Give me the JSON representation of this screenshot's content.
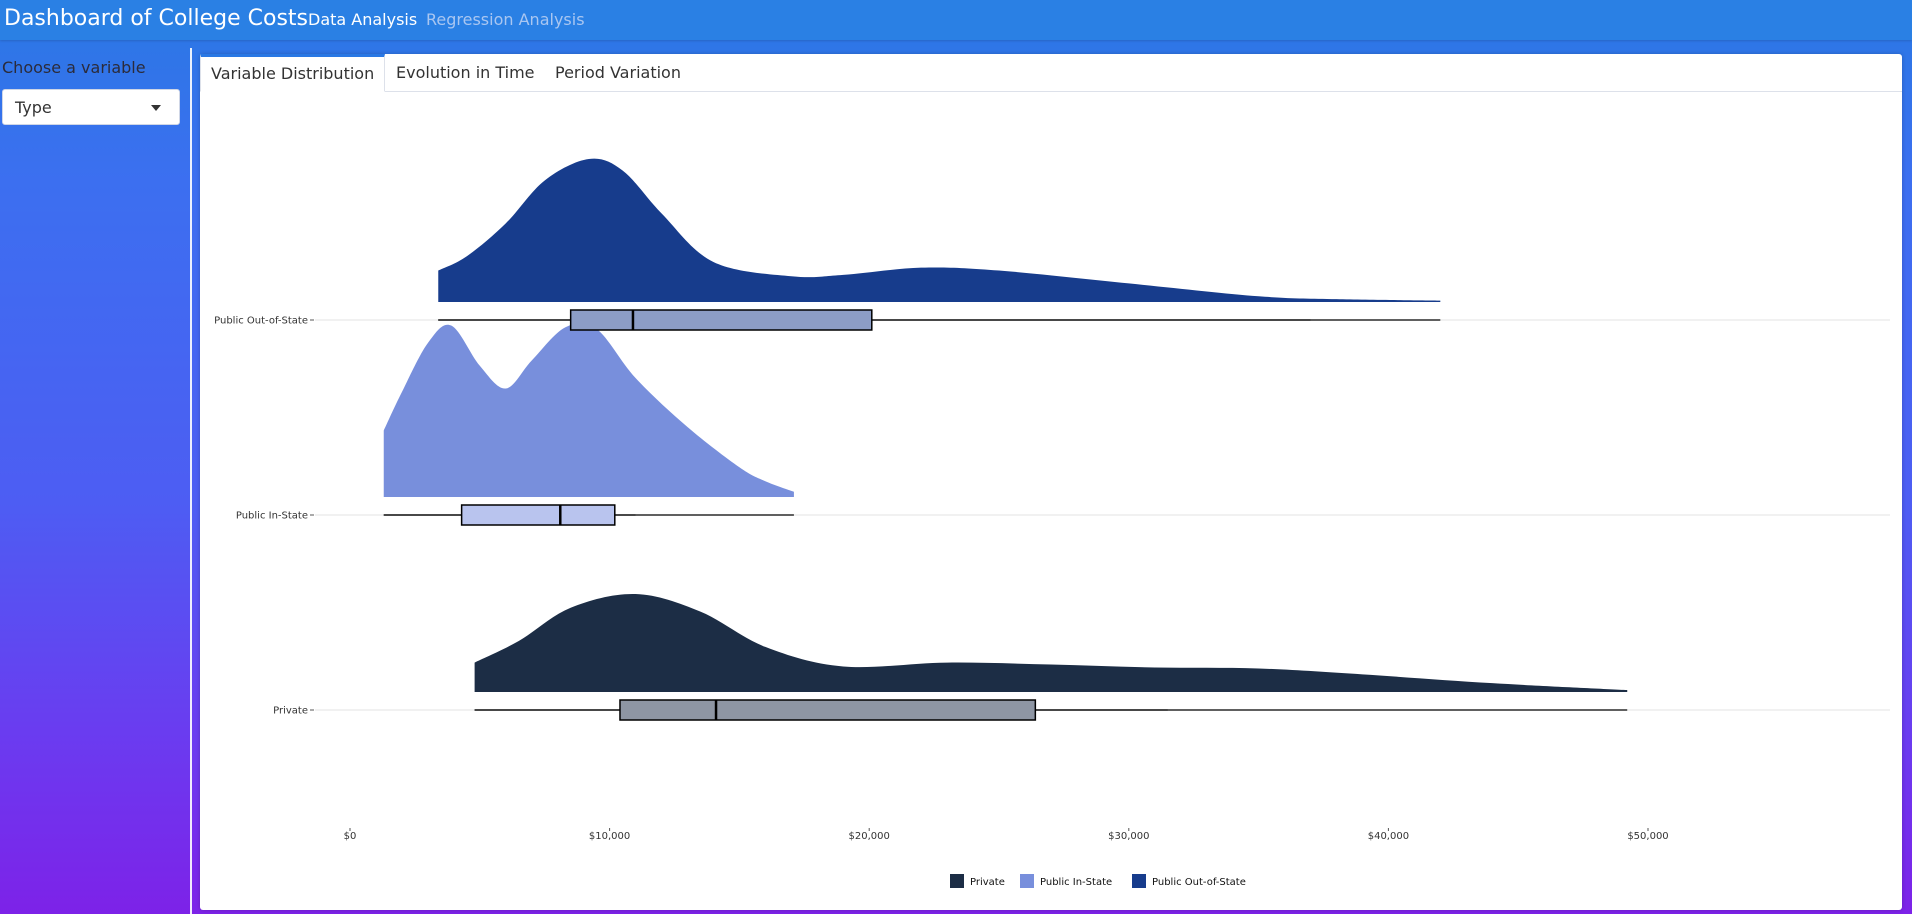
{
  "app": {
    "title": "Dashboard of College Costs",
    "nav": [
      {
        "label": "Data Analysis",
        "active": true
      },
      {
        "label": "Regression Analysis",
        "active": false
      }
    ]
  },
  "sidebar": {
    "label": "Choose a variable",
    "select_value": "Type"
  },
  "tabs": [
    {
      "label": "Variable Distribution",
      "active": true
    },
    {
      "label": "Evolution in Time",
      "active": false
    },
    {
      "label": "Period Variation",
      "active": false
    }
  ],
  "chart_data": {
    "type": "raincloud",
    "categories": [
      "Public Out-of-State",
      "Public In-State",
      "Private"
    ],
    "x_ticks": [
      "$0",
      "$10,000",
      "$20,000",
      "$30,000",
      "$40,000",
      "$50,000"
    ],
    "xlim": [
      0,
      50000
    ],
    "grid": "horizontal",
    "legend_position": "bottom",
    "legend": [
      "Private",
      "Public In-State",
      "Public Out-of-State"
    ],
    "colors": {
      "Private": "#1c2d45",
      "Public In-State": "#788fdc",
      "Public Out-of-State": "#173c8c"
    },
    "box_fill": {
      "Private": "#8e96a4",
      "Public In-State": "#b9c4ee",
      "Public Out-of-State": "#8c9dc6"
    },
    "series": [
      {
        "category": "Public Out-of-State",
        "min": 3400,
        "q1": 8500,
        "median": 10900,
        "q3": 20100,
        "max": 42000,
        "whisker_hi": 37000,
        "density": [
          [
            3400,
            0.22
          ],
          [
            4500,
            0.32
          ],
          [
            6000,
            0.55
          ],
          [
            7500,
            0.85
          ],
          [
            9200,
            1.0
          ],
          [
            10500,
            0.92
          ],
          [
            12000,
            0.62
          ],
          [
            14000,
            0.28
          ],
          [
            17000,
            0.18
          ],
          [
            19000,
            0.19
          ],
          [
            22000,
            0.24
          ],
          [
            25000,
            0.22
          ],
          [
            30000,
            0.13
          ],
          [
            35000,
            0.04
          ],
          [
            38000,
            0.02
          ],
          [
            42000,
            0.01
          ]
        ]
      },
      {
        "category": "Public In-State",
        "min": 1300,
        "q1": 4300,
        "median": 8100,
        "q3": 10200,
        "max": 17100,
        "whisker_hi": 11000,
        "density": [
          [
            1300,
            0.38
          ],
          [
            2000,
            0.6
          ],
          [
            3000,
            0.88
          ],
          [
            3900,
            0.98
          ],
          [
            5000,
            0.75
          ],
          [
            6000,
            0.62
          ],
          [
            7000,
            0.78
          ],
          [
            8300,
            0.97
          ],
          [
            9500,
            0.96
          ],
          [
            11000,
            0.68
          ],
          [
            13000,
            0.4
          ],
          [
            15000,
            0.17
          ],
          [
            16000,
            0.09
          ],
          [
            17100,
            0.03
          ]
        ]
      },
      {
        "category": "Private",
        "min": 4800,
        "q1": 10400,
        "median": 14100,
        "q3": 26400,
        "max": 49200,
        "whisker_hi": 31500,
        "density": [
          [
            4800,
            0.3
          ],
          [
            6500,
            0.52
          ],
          [
            8500,
            0.86
          ],
          [
            11000,
            1.0
          ],
          [
            13500,
            0.82
          ],
          [
            16000,
            0.46
          ],
          [
            19000,
            0.26
          ],
          [
            23000,
            0.3
          ],
          [
            27000,
            0.28
          ],
          [
            31000,
            0.25
          ],
          [
            35000,
            0.24
          ],
          [
            39000,
            0.18
          ],
          [
            44000,
            0.09
          ],
          [
            49200,
            0.02
          ]
        ]
      }
    ]
  }
}
